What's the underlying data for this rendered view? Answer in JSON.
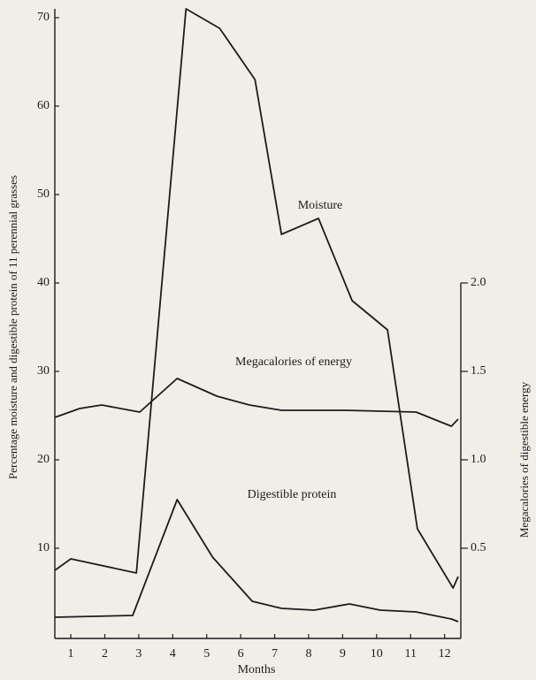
{
  "chart_data": {
    "type": "line",
    "xlabel": "Months",
    "ylabel": "Percentage moisture and digestible protein of 11 perennial grasses",
    "y2label": "Megacalories of digestible energy",
    "xlim": [
      0.53,
      12.4
    ],
    "xticks": [
      1,
      2,
      3,
      4,
      5,
      6,
      7,
      8,
      9,
      10,
      11,
      12
    ],
    "ylim": [
      0,
      71
    ],
    "yticks": [
      10,
      20,
      30,
      40,
      50,
      60,
      70
    ],
    "y2lim": [
      0,
      3.55
    ],
    "y2ticks": [
      0.5,
      {
        "value": 1.0,
        "label": "1.0"
      },
      1.5,
      {
        "value": 2.0,
        "label": "2.0"
      }
    ],
    "grid": false,
    "series": [
      {
        "name": "Moisture",
        "color": "#1c1c1c",
        "x": [
          0.53,
          1,
          2.93,
          4.39,
          5.38,
          6.42,
          7.2,
          8.29,
          9.28,
          10.32,
          11.2,
          12.25,
          12.4
        ],
        "values": [
          7.5,
          8.8,
          7.2,
          71,
          68.8,
          63,
          45.5,
          47.3,
          38,
          34.7,
          12.2,
          5.5,
          6.8
        ]
      },
      {
        "name": "Megacalories of energy",
        "color": "#1c1c1c",
        "axis": "y2",
        "x": [
          0.53,
          1.26,
          1.91,
          3.03,
          4.13,
          5.3,
          6.26,
          7.2,
          9.07,
          11.16,
          12.2,
          12.4
        ],
        "values": [
          1.24,
          1.29,
          1.31,
          1.27,
          1.46,
          1.36,
          1.31,
          1.28,
          1.28,
          1.27,
          1.19,
          1.23
        ]
      },
      {
        "name": "Digestible protein",
        "color": "#1c1c1c",
        "x": [
          0.53,
          2.82,
          4.13,
          5.17,
          6.34,
          7.2,
          8.16,
          9.2,
          10.11,
          11.16,
          12.2,
          12.4
        ],
        "values": [
          2.2,
          2.4,
          15.5,
          9,
          4,
          3.2,
          3,
          3.7,
          3,
          2.8,
          2,
          1.7
        ]
      }
    ]
  }
}
